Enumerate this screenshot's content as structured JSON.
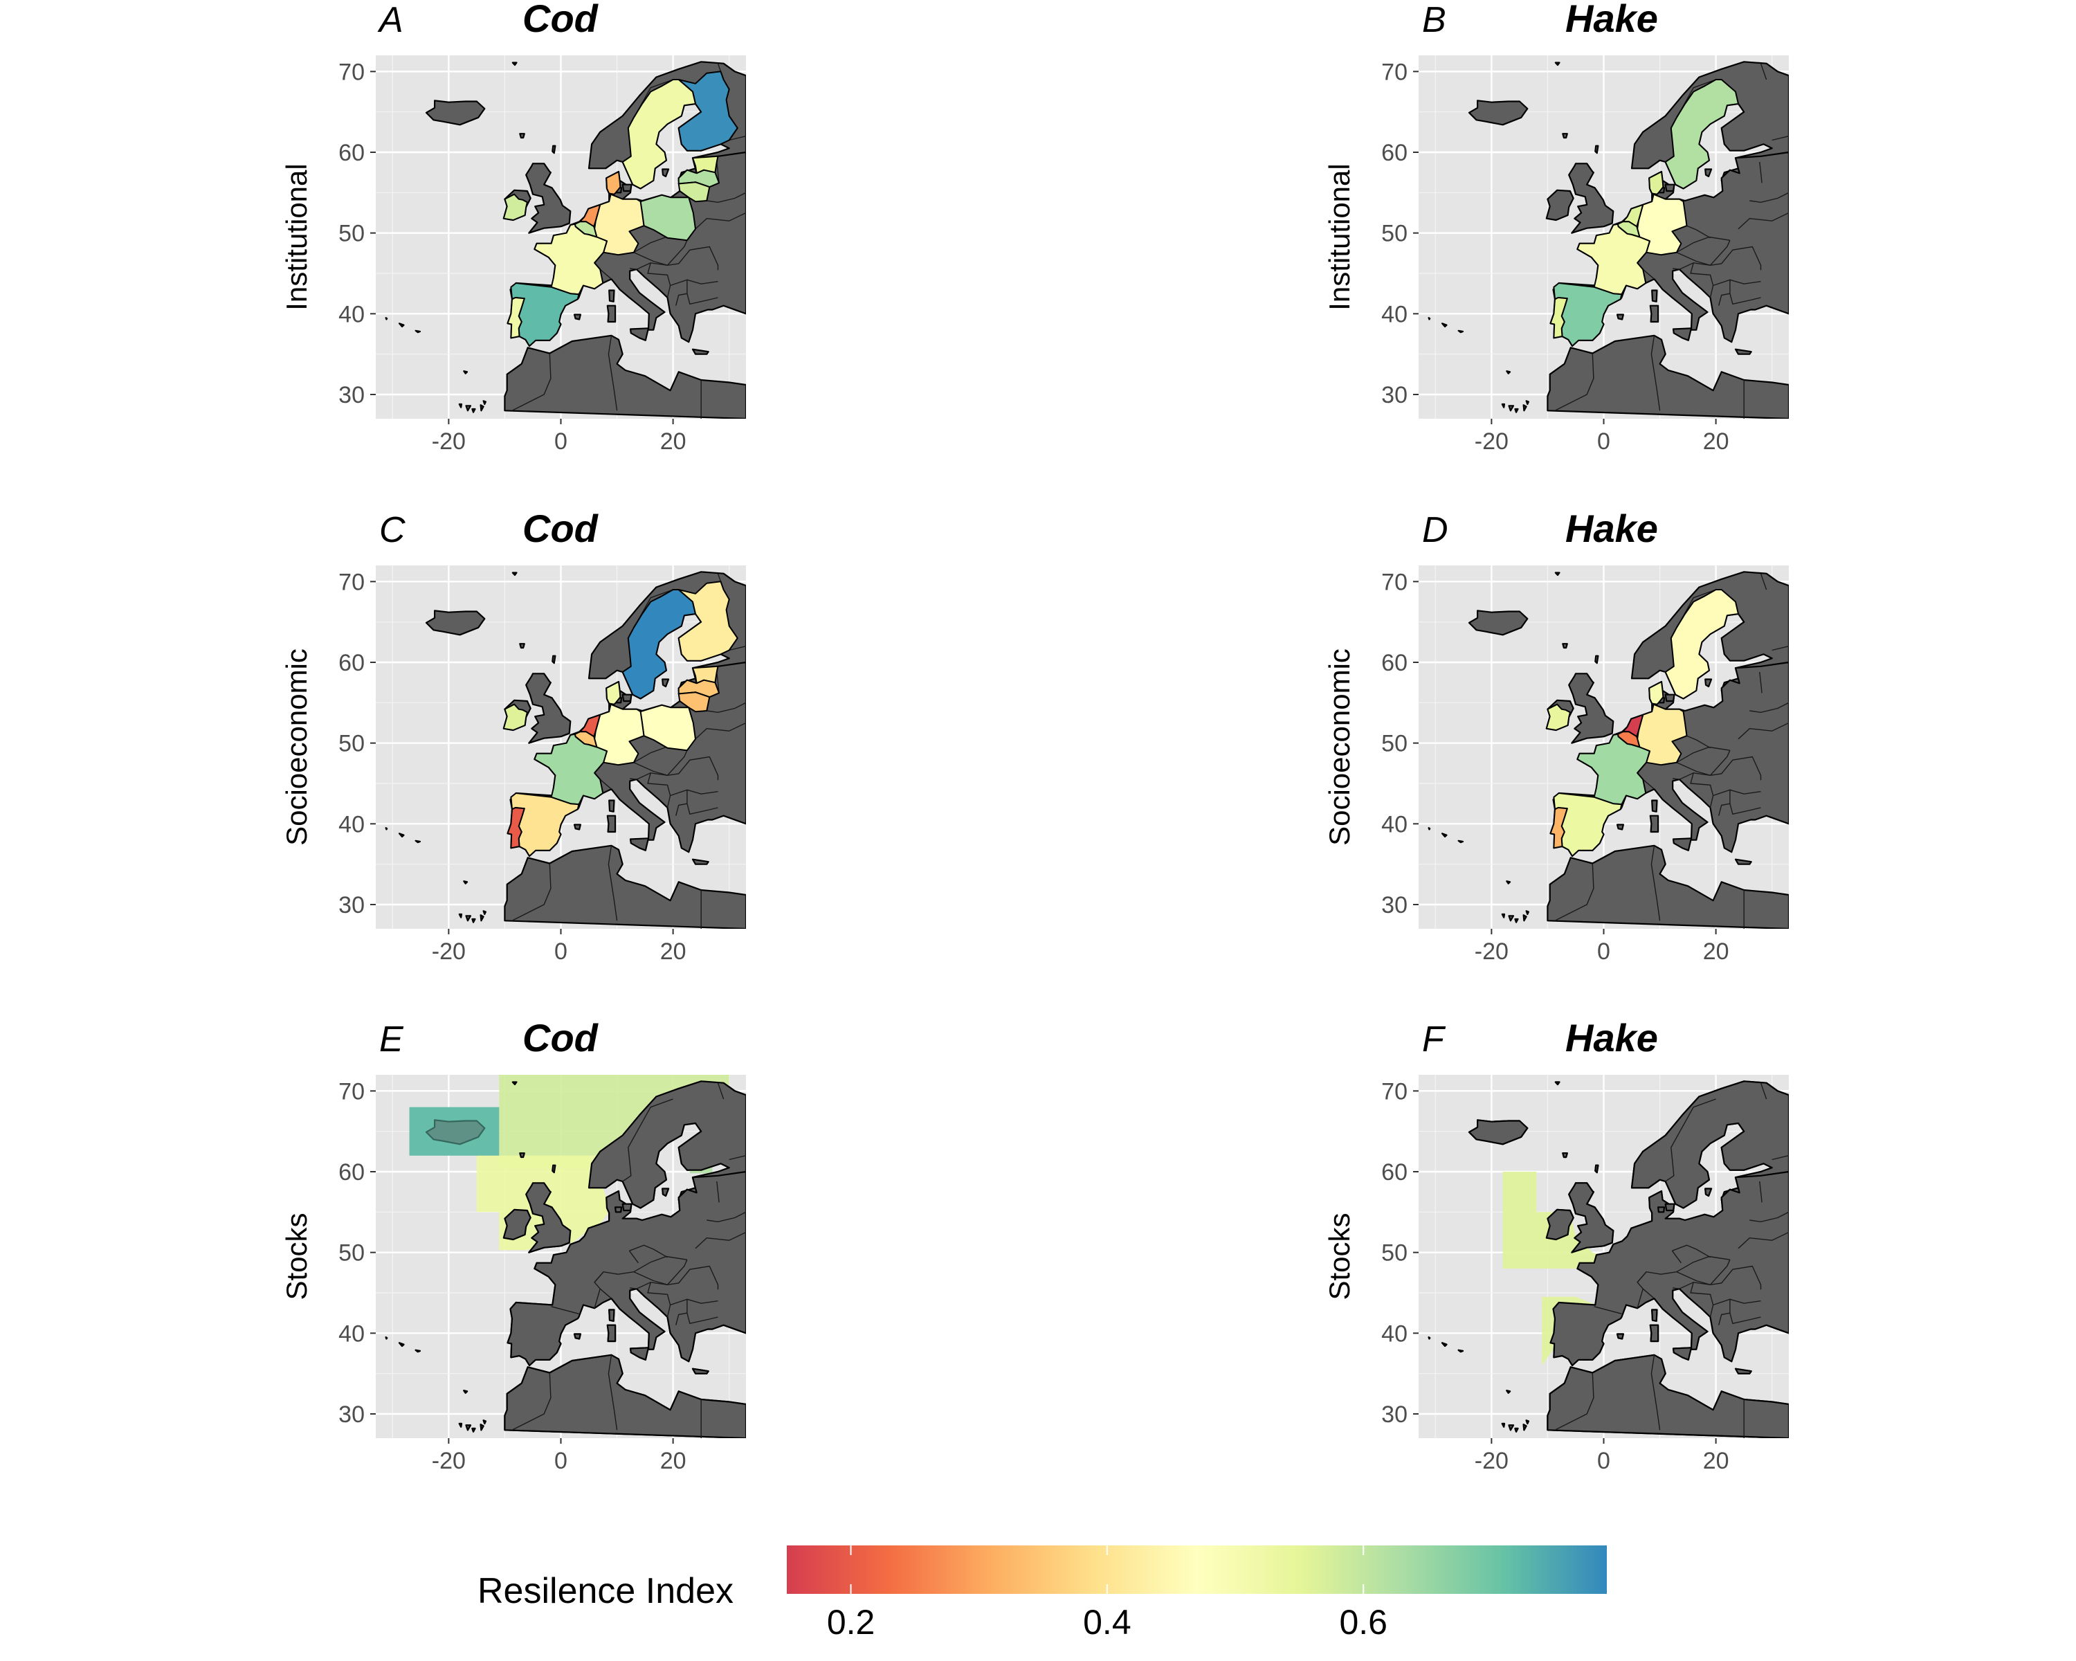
{
  "colors": {
    "panel_background": "#e5e5e5",
    "land": "#5e5e5e",
    "gradient_stops": [
      "#d53e4f",
      "#f46d43",
      "#fdae61",
      "#fee08b",
      "#ffffbf",
      "#e6f598",
      "#abdda4",
      "#66c2a5",
      "#3288bd"
    ]
  },
  "legend": {
    "title": "Resilence Index",
    "min": 0.15,
    "max": 0.79,
    "ticks": [
      {
        "value": 0.2,
        "label": "0.2"
      },
      {
        "value": 0.4,
        "label": "0.4"
      },
      {
        "value": 0.6,
        "label": "0.6"
      }
    ]
  },
  "axes": {
    "x_range": [
      -33,
      33
    ],
    "y_range": [
      27,
      72
    ],
    "x_ticks": [
      {
        "value": -20,
        "label": "-20"
      },
      {
        "value": 0,
        "label": "0"
      },
      {
        "value": 20,
        "label": "20"
      }
    ],
    "y_ticks": [
      {
        "value": 70,
        "label": "70"
      },
      {
        "value": 60,
        "label": "60"
      },
      {
        "value": 50,
        "label": "50"
      },
      {
        "value": 40,
        "label": "40"
      },
      {
        "value": 30,
        "label": "30"
      }
    ]
  },
  "panels": [
    {
      "letter": "A",
      "title": "Cod",
      "ylabel": "Institutional",
      "kind": "countries",
      "values": {
        "finland": 0.78,
        "sweden": 0.52,
        "estonia": 0.55,
        "latvia": 0.62,
        "lithuania": 0.58,
        "poland": 0.63,
        "germany": 0.44,
        "denmark": 0.32,
        "netherlands": 0.28,
        "belgium": 0.6,
        "france": 0.5,
        "ireland": 0.58,
        "spain": 0.72,
        "portugal": 0.52
      }
    },
    {
      "letter": "B",
      "title": "Hake",
      "ylabel": "Institutional",
      "kind": "countries",
      "values": {
        "sweden": 0.62,
        "denmark": 0.56,
        "germany": 0.47,
        "netherlands": 0.56,
        "belgium": 0.58,
        "france": 0.5,
        "spain": 0.68,
        "portugal": 0.55
      }
    },
    {
      "letter": "C",
      "title": "Cod",
      "ylabel": "Socioeconomic",
      "kind": "countries",
      "values": {
        "sweden": 0.79,
        "finland": 0.42,
        "estonia": 0.4,
        "latvia": 0.35,
        "lithuania": 0.34,
        "poland": 0.47,
        "germany": 0.47,
        "denmark": 0.52,
        "netherlands": 0.2,
        "belgium": 0.35,
        "france": 0.64,
        "ireland": 0.56,
        "spain": 0.4,
        "portugal": 0.2
      }
    },
    {
      "letter": "D",
      "title": "Hake",
      "ylabel": "Socioeconomic",
      "kind": "countries",
      "values": {
        "sweden": 0.46,
        "denmark": 0.5,
        "germany": 0.42,
        "netherlands": 0.15,
        "belgium": 0.25,
        "france": 0.64,
        "ireland": 0.54,
        "spain": 0.53,
        "portugal": 0.32
      }
    },
    {
      "letter": "E",
      "title": "Cod",
      "ylabel": "Stocks",
      "kind": "stocks",
      "values": {
        "iceland_box": 0.72,
        "north_box": 0.58,
        "west_box": 0.53,
        "baltic_box": 0.62
      }
    },
    {
      "letter": "F",
      "title": "Hake",
      "ylabel": "Stocks",
      "kind": "stocks",
      "values": {
        "north_stock": 0.56,
        "south_stock": 0.56
      }
    }
  ]
}
